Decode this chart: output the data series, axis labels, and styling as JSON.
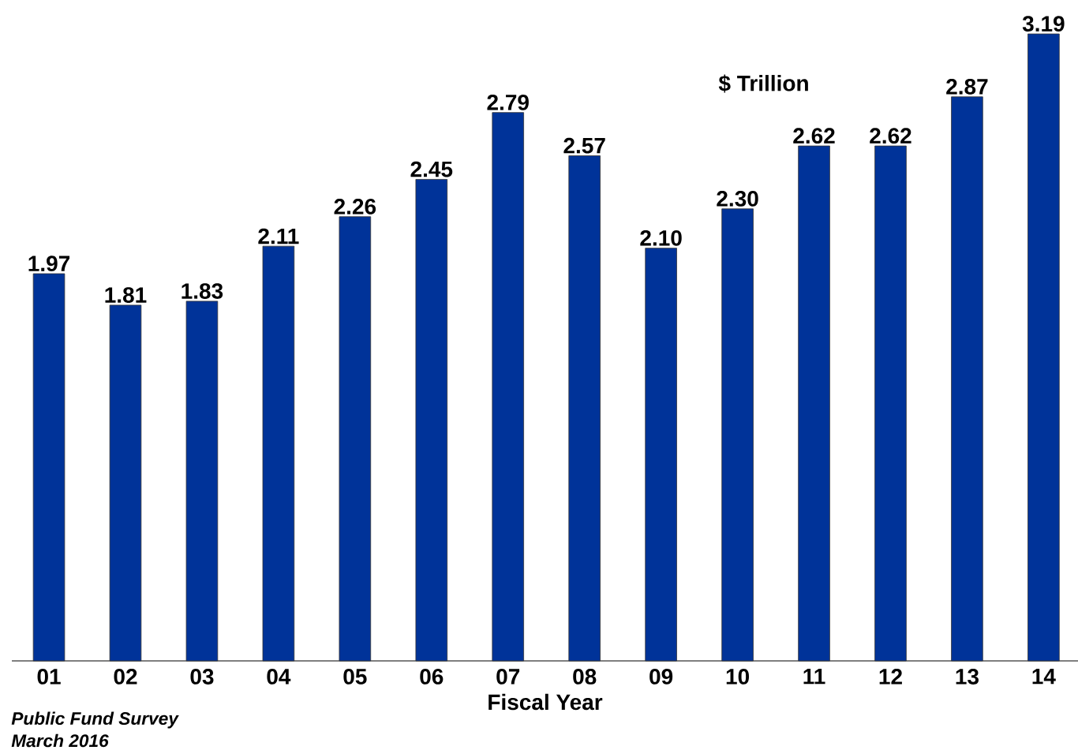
{
  "chart_data": {
    "type": "bar",
    "ylabel": "$ Trillion",
    "xlabel": "Fiscal Year",
    "categories": [
      "01",
      "02",
      "03",
      "04",
      "05",
      "06",
      "07",
      "08",
      "09",
      "10",
      "11",
      "12",
      "13",
      "14"
    ],
    "values": [
      1.97,
      1.81,
      1.83,
      2.11,
      2.26,
      2.45,
      2.79,
      2.57,
      2.1,
      2.3,
      2.62,
      2.62,
      2.87,
      3.19
    ],
    "value_labels": [
      "1.97",
      "1.81",
      "1.83",
      "2.11",
      "2.26",
      "2.45",
      "2.79",
      "2.57",
      "2.10",
      "2.30",
      "2.62",
      "2.62",
      "2.87",
      "3.19"
    ],
    "color": "#003399",
    "grid": false,
    "annotations": [
      "Public Fund Survey",
      "March 2016"
    ]
  }
}
